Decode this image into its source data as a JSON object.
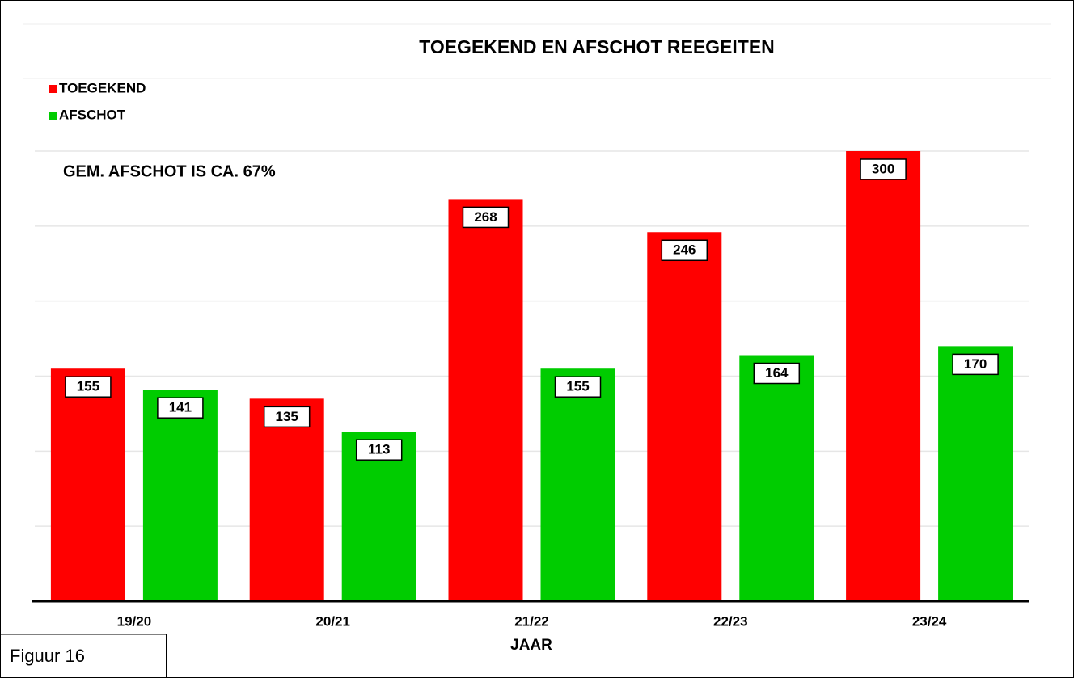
{
  "chart_data": {
    "type": "bar",
    "title": "TOEGEKEND EN AFSCHOT REEGEITEN",
    "x_label": "JAAR",
    "annotation": "GEM. AFSCHOT IS CA. 67%",
    "figure_label": "Figuur 16",
    "categories": [
      "19/20",
      "20/21",
      "21/22",
      "22/23",
      "23/24"
    ],
    "series": [
      {
        "name": "TOEGEKEND",
        "color": "#ff0000",
        "values": [
          155,
          135,
          268,
          246,
          300
        ]
      },
      {
        "name": "AFSCHOT",
        "color": "#00cc00",
        "values": [
          141,
          113,
          155,
          164,
          170
        ]
      }
    ],
    "ylim": [
      0,
      300
    ],
    "yticks": [
      0,
      50,
      100,
      150,
      200,
      250,
      300
    ],
    "grid": true,
    "legend": "top-left"
  }
}
